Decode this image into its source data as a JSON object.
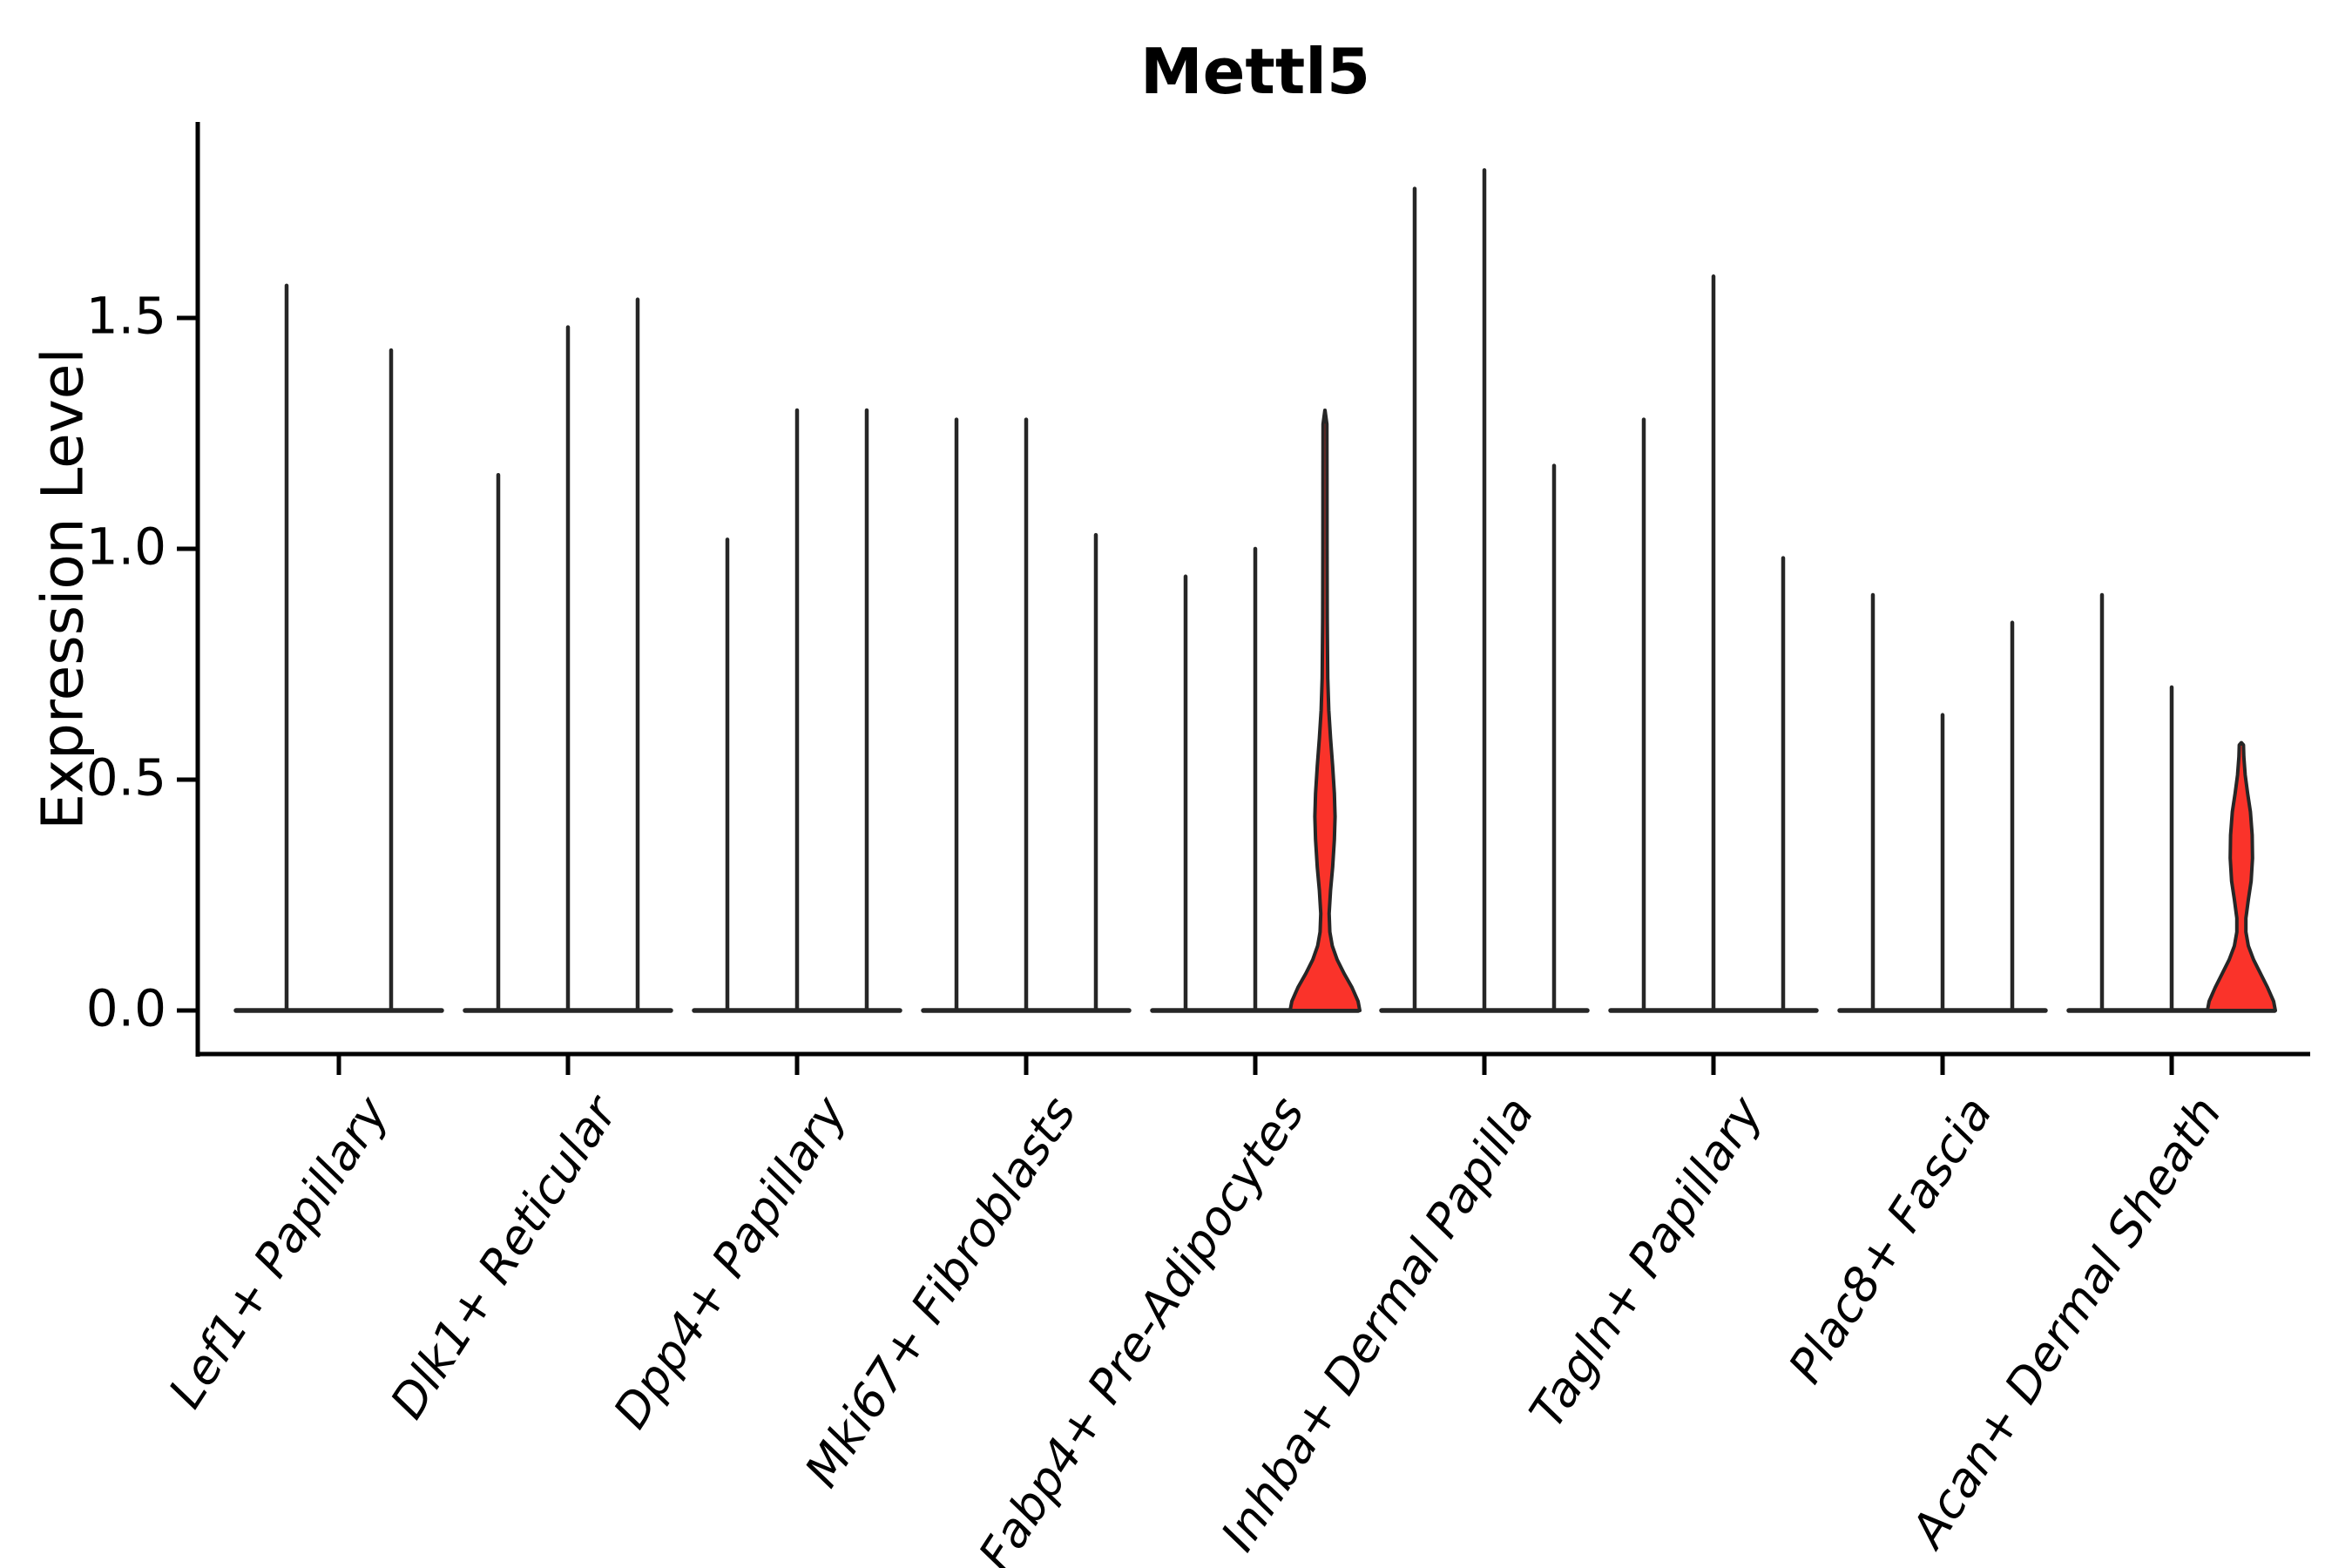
{
  "chart_data": {
    "type": "violin",
    "title": "Mettl5",
    "xlabel": "",
    "ylabel": "Expression Level",
    "ylim": [
      -0.09,
      1.93
    ],
    "yticks": [
      0.0,
      0.5,
      1.0,
      1.5
    ],
    "ytick_labels": [
      "0.0",
      "0.5",
      "1.0",
      "1.5"
    ],
    "grid": false,
    "legend": "none",
    "categories": [
      "Lef1+ Papillary",
      "Dlk1+ Reticular",
      "Dpp4+ Papillary",
      "Mki67+ Fibroblasts",
      "Fabp4+ Pre-Adipocytes",
      "Inhba+ Dermal Papilla",
      "Tagln+ Papillary",
      "Plac8+ Fascia",
      "Acan+ Dermal Sheath"
    ],
    "groups": [
      {
        "category": "Lef1+ Papillary",
        "violins": [
          {
            "max": 1.57
          },
          {
            "max": 1.43
          }
        ]
      },
      {
        "category": "Dlk1+ Reticular",
        "violins": [
          {
            "max": 1.16
          },
          {
            "max": 1.48
          },
          {
            "max": 1.54
          }
        ]
      },
      {
        "category": "Dpp4+ Papillary",
        "violins": [
          {
            "max": 1.02
          },
          {
            "max": 1.3
          },
          {
            "max": 1.3
          }
        ]
      },
      {
        "category": "Mki67+ Fibroblasts",
        "violins": [
          {
            "max": 1.28
          },
          {
            "max": 1.28
          },
          {
            "max": 1.03
          }
        ]
      },
      {
        "category": "Fabp4+ Pre-Adipocytes",
        "violins": [
          {
            "max": 0.94
          },
          {
            "max": 1.0
          },
          {
            "max": 1.3,
            "highlight": true,
            "profile": [
              [
                0.0,
                1.0
              ],
              [
                0.02,
                0.95
              ],
              [
                0.05,
                0.775
              ],
              [
                0.08,
                0.55
              ],
              [
                0.11,
                0.35
              ],
              [
                0.14,
                0.21
              ],
              [
                0.17,
                0.14
              ],
              [
                0.21,
                0.12
              ],
              [
                0.26,
                0.16
              ],
              [
                0.31,
                0.22
              ],
              [
                0.37,
                0.27
              ],
              [
                0.42,
                0.29
              ],
              [
                0.47,
                0.27
              ],
              [
                0.53,
                0.22
              ],
              [
                0.59,
                0.16
              ],
              [
                0.65,
                0.11
              ],
              [
                0.72,
                0.08
              ],
              [
                0.85,
                0.065
              ],
              [
                1.0,
                0.06
              ],
              [
                1.15,
                0.058
              ],
              [
                1.27,
                0.055
              ],
              [
                1.3,
                0.002
              ]
            ]
          }
        ]
      },
      {
        "category": "Inhba+ Dermal Papilla",
        "violins": [
          {
            "max": 1.78
          },
          {
            "max": 1.82
          },
          {
            "max": 1.18
          }
        ]
      },
      {
        "category": "Tagln+ Papillary",
        "violins": [
          {
            "max": 1.28
          },
          {
            "max": 1.59
          },
          {
            "max": 0.98
          }
        ]
      },
      {
        "category": "Plac8+ Fascia",
        "violins": [
          {
            "max": 0.9
          },
          {
            "max": 0.64
          },
          {
            "max": 0.84
          }
        ]
      },
      {
        "category": "Acan+ Dermal Sheath",
        "violins": [
          {
            "max": 0.9
          },
          {
            "max": 0.7
          },
          {
            "max": 0.58,
            "highlight": true,
            "profile": [
              [
                0.0,
                0.975
              ],
              [
                0.02,
                0.925
              ],
              [
                0.05,
                0.75
              ],
              [
                0.08,
                0.55
              ],
              [
                0.11,
                0.35
              ],
              [
                0.14,
                0.2
              ],
              [
                0.17,
                0.13
              ],
              [
                0.2,
                0.13
              ],
              [
                0.24,
                0.2
              ],
              [
                0.28,
                0.28
              ],
              [
                0.33,
                0.32
              ],
              [
                0.38,
                0.31
              ],
              [
                0.43,
                0.26
              ],
              [
                0.47,
                0.18
              ],
              [
                0.51,
                0.11
              ],
              [
                0.55,
                0.07
              ],
              [
                0.575,
                0.06
              ],
              [
                0.58,
                0.002
              ]
            ]
          }
        ]
      }
    ],
    "colors": {
      "violin_line": "#262626",
      "highlight_fill": "#fa332a",
      "axis": "#000000",
      "background": "#ffffff"
    }
  }
}
